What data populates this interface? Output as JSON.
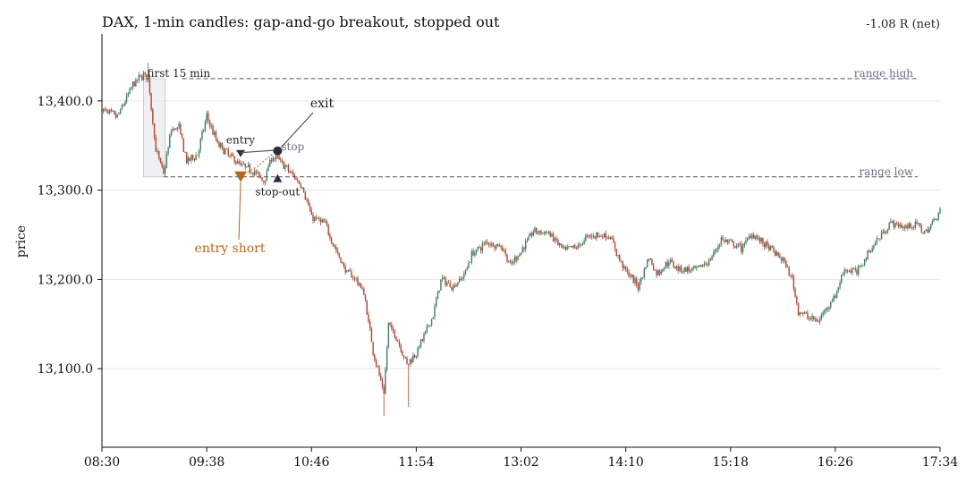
{
  "chart_data": {
    "type": "candlestick",
    "title": "DAX, 1-min candles: gap-and-go breakout, stopped out",
    "net_label": "-1.08 R (net)",
    "ylabel": "price",
    "xlabel": "",
    "ylim": [
      13012,
      13475
    ],
    "y_ticks": [
      13100,
      13200,
      13300,
      13400
    ],
    "y_tick_labels": [
      "13,100.0",
      "13,200.0",
      "13,300.0",
      "13,400.0"
    ],
    "x_ticks": [
      "08:30",
      "09:38",
      "10:46",
      "11:54",
      "13:02",
      "14:10",
      "15:18",
      "16:26",
      "17:34"
    ],
    "x_start": "08:30",
    "x_end": "17:34",
    "grid": "horizontal",
    "colors": {
      "up": "#3d7d6a",
      "down": "#b5452e",
      "accent": "#b8651b",
      "marker": "#2b2f3a",
      "range_line": "#6b7385"
    },
    "price_path": [
      {
        "t": "08:30",
        "p": 13390
      },
      {
        "t": "08:40",
        "p": 13382
      },
      {
        "t": "08:50",
        "p": 13418
      },
      {
        "t": "08:57",
        "p": 13430
      },
      {
        "t": "09:00",
        "p": 13425
      },
      {
        "t": "09:05",
        "p": 13345
      },
      {
        "t": "09:10",
        "p": 13318
      },
      {
        "t": "09:15",
        "p": 13368
      },
      {
        "t": "09:20",
        "p": 13370
      },
      {
        "t": "09:25",
        "p": 13332
      },
      {
        "t": "09:32",
        "p": 13340
      },
      {
        "t": "09:38",
        "p": 13383
      },
      {
        "t": "09:45",
        "p": 13352
      },
      {
        "t": "09:52",
        "p": 13340
      },
      {
        "t": "10:00",
        "p": 13328
      },
      {
        "t": "10:08",
        "p": 13322
      },
      {
        "t": "10:15",
        "p": 13310
      },
      {
        "t": "10:20",
        "p": 13337
      },
      {
        "t": "10:25",
        "p": 13334
      },
      {
        "t": "10:32",
        "p": 13320
      },
      {
        "t": "10:40",
        "p": 13305
      },
      {
        "t": "10:46",
        "p": 13270
      },
      {
        "t": "10:55",
        "p": 13262
      },
      {
        "t": "11:00",
        "p": 13240
      },
      {
        "t": "11:08",
        "p": 13210
      },
      {
        "t": "11:15",
        "p": 13200
      },
      {
        "t": "11:20",
        "p": 13185
      },
      {
        "t": "11:26",
        "p": 13120
      },
      {
        "t": "11:33",
        "p": 13072
      },
      {
        "t": "11:36",
        "p": 13150
      },
      {
        "t": "11:42",
        "p": 13132
      },
      {
        "t": "11:48",
        "p": 13105
      },
      {
        "t": "11:54",
        "p": 13118
      },
      {
        "t": "12:00",
        "p": 13140
      },
      {
        "t": "12:05",
        "p": 13160
      },
      {
        "t": "12:10",
        "p": 13200
      },
      {
        "t": "12:18",
        "p": 13192
      },
      {
        "t": "12:25",
        "p": 13205
      },
      {
        "t": "12:30",
        "p": 13228
      },
      {
        "t": "12:40",
        "p": 13242
      },
      {
        "t": "12:50",
        "p": 13236
      },
      {
        "t": "12:55",
        "p": 13215
      },
      {
        "t": "13:02",
        "p": 13232
      },
      {
        "t": "13:10",
        "p": 13254
      },
      {
        "t": "13:20",
        "p": 13252
      },
      {
        "t": "13:30",
        "p": 13232
      },
      {
        "t": "13:40",
        "p": 13238
      },
      {
        "t": "13:45",
        "p": 13248
      },
      {
        "t": "13:52",
        "p": 13250
      },
      {
        "t": "14:00",
        "p": 13248
      },
      {
        "t": "14:05",
        "p": 13225
      },
      {
        "t": "14:10",
        "p": 13210
      },
      {
        "t": "14:18",
        "p": 13192
      },
      {
        "t": "14:25",
        "p": 13225
      },
      {
        "t": "14:30",
        "p": 13206
      },
      {
        "t": "14:38",
        "p": 13220
      },
      {
        "t": "14:45",
        "p": 13212
      },
      {
        "t": "14:55",
        "p": 13210
      },
      {
        "t": "15:05",
        "p": 13222
      },
      {
        "t": "15:12",
        "p": 13245
      },
      {
        "t": "15:18",
        "p": 13240
      },
      {
        "t": "15:25",
        "p": 13235
      },
      {
        "t": "15:32",
        "p": 13252
      },
      {
        "t": "15:38",
        "p": 13242
      },
      {
        "t": "15:45",
        "p": 13232
      },
      {
        "t": "15:52",
        "p": 13222
      },
      {
        "t": "15:58",
        "p": 13200
      },
      {
        "t": "16:02",
        "p": 13165
      },
      {
        "t": "16:08",
        "p": 13158
      },
      {
        "t": "16:15",
        "p": 13153
      },
      {
        "t": "16:20",
        "p": 13168
      },
      {
        "t": "16:26",
        "p": 13182
      },
      {
        "t": "16:32",
        "p": 13212
      },
      {
        "t": "16:40",
        "p": 13208
      },
      {
        "t": "16:48",
        "p": 13232
      },
      {
        "t": "16:55",
        "p": 13248
      },
      {
        "t": "17:02",
        "p": 13264
      },
      {
        "t": "17:10",
        "p": 13258
      },
      {
        "t": "17:18",
        "p": 13262
      },
      {
        "t": "17:25",
        "p": 13252
      },
      {
        "t": "17:34",
        "p": 13278
      }
    ],
    "spikes": [
      {
        "t": "09:00",
        "high": 13443
      },
      {
        "t": "11:33",
        "low": 13047
      },
      {
        "t": "11:49",
        "low": 13057
      }
    ],
    "opening_range": {
      "start": "08:57",
      "end": "09:11",
      "high": 13425,
      "low": 13315,
      "label": "first 15 min"
    },
    "range_high": {
      "value": 13425,
      "label": "range high"
    },
    "range_low": {
      "value": 13315,
      "label": "range low"
    },
    "entry": {
      "t": "10:00",
      "price": 13315,
      "label": "entry short"
    },
    "entry_ref": {
      "t": "10:00",
      "price": 13341,
      "label": "entry"
    },
    "stop": {
      "t": "10:24",
      "price": 13344,
      "label": "stop"
    },
    "exit": {
      "t": "10:24",
      "price": 13344,
      "label": "exit"
    },
    "stop_out": {
      "t": "10:24",
      "price": 13313,
      "label": "stop-out"
    }
  }
}
